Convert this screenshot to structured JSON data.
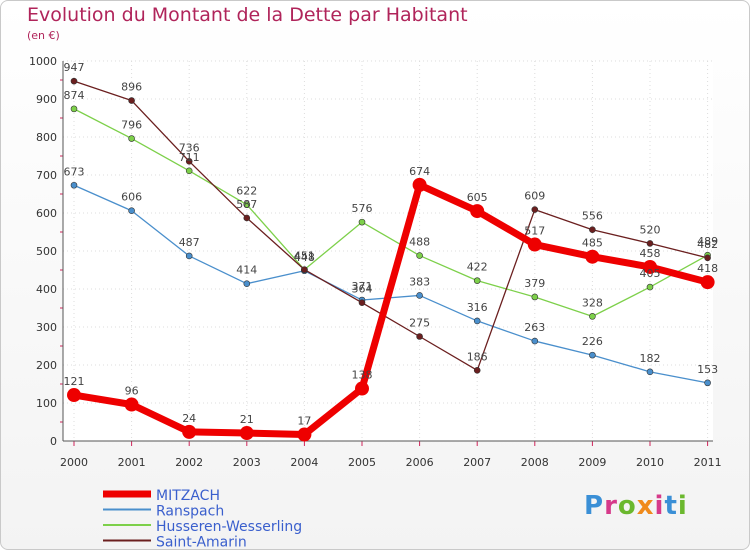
{
  "title": "Evolution du Montant de la Dette par Habitant",
  "subtitle": "(en €)",
  "logo_text": "Proxiti",
  "chart_data": {
    "type": "line",
    "x": [
      "2000",
      "2001",
      "2002",
      "2003",
      "2004",
      "2005",
      "2006",
      "2007",
      "2008",
      "2009",
      "2010",
      "2011"
    ],
    "ylim": [
      0,
      1000
    ],
    "yticks": [
      "0",
      "100",
      "200",
      "300",
      "400",
      "500",
      "600",
      "700",
      "800",
      "900",
      "1000"
    ],
    "grid": true,
    "legend_position": "bottom-left",
    "series": [
      {
        "name": "MITZACH",
        "color": "#ee0000",
        "values": [
          121,
          96,
          24,
          21,
          17,
          138,
          674,
          605,
          517,
          485,
          458,
          418
        ]
      },
      {
        "name": "Ranspach",
        "color": "#4a8fcc",
        "values": [
          673,
          606,
          487,
          414,
          448,
          371,
          383,
          316,
          263,
          226,
          182,
          153
        ]
      },
      {
        "name": "Husseren-Wesserling",
        "color": "#7dd04a",
        "values": [
          874,
          796,
          711,
          622,
          451,
          576,
          488,
          422,
          379,
          328,
          405,
          489
        ]
      },
      {
        "name": "Saint-Amarin",
        "color": "#6b1f1f",
        "values": [
          947,
          896,
          736,
          587,
          451,
          364,
          275,
          186,
          609,
          556,
          520,
          482
        ]
      }
    ]
  }
}
